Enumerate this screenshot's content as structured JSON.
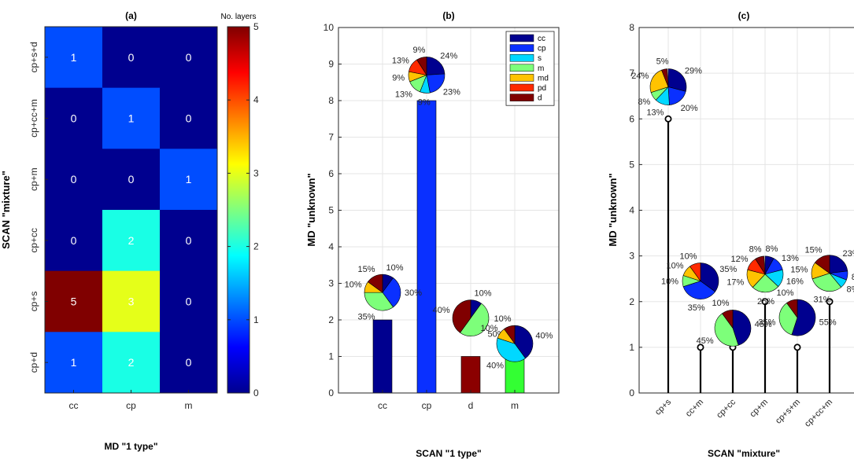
{
  "chart_data": [
    {
      "type": "heatmap",
      "title": "(a)",
      "xlabel": "MD \"1 type\"",
      "ylabel": "SCAN \"mixture\"",
      "x_categories": [
        "cc",
        "cp",
        "m"
      ],
      "y_categories": [
        "cp+s+d",
        "cp+cc+m",
        "cp+m",
        "cp+cc",
        "cp+s",
        "cp+d"
      ],
      "values": [
        [
          1,
          0,
          0
        ],
        [
          0,
          1,
          0
        ],
        [
          0,
          0,
          1
        ],
        [
          0,
          2,
          0
        ],
        [
          5,
          3,
          0
        ],
        [
          1,
          2,
          0
        ]
      ],
      "colorbar": {
        "label": "No. layers",
        "range": [
          0,
          5
        ],
        "ticks": [
          "0",
          "1",
          "2",
          "3",
          "4",
          "5"
        ]
      }
    },
    {
      "type": "bar",
      "title": "(b)",
      "xlabel": "SCAN \"1 type\"",
      "ylabel": "MD \"unknown\"",
      "ylim": [
        0,
        10
      ],
      "yticks": [
        "0",
        "1",
        "2",
        "3",
        "4",
        "5",
        "6",
        "7",
        "8",
        "9",
        "10"
      ],
      "grid": true,
      "legend_placement": "top-right",
      "legend": [
        {
          "label": "cc",
          "color": "#00008f"
        },
        {
          "label": "cp",
          "color": "#0a30ff"
        },
        {
          "label": "s",
          "color": "#00d8ff"
        },
        {
          "label": "m",
          "color": "#7dff7a"
        },
        {
          "label": "md",
          "color": "#ffc300"
        },
        {
          "label": "pd",
          "color": "#ff2a00"
        },
        {
          "label": "d",
          "color": "#800000"
        }
      ],
      "categories": [
        "cc",
        "cp",
        "d",
        "m"
      ],
      "values": [
        2,
        8,
        1,
        1
      ],
      "bar_colors": [
        "#00008f",
        "#0a30ff",
        "#8b0000",
        "#33ff33"
      ],
      "pies": [
        {
          "category": "cc",
          "y": 2.75,
          "slices": [
            {
              "class": "cc",
              "pct": 10
            },
            {
              "class": "cp",
              "pct": 30
            },
            {
              "class": "m",
              "pct": 35
            },
            {
              "class": "md",
              "pct": 10
            },
            {
              "class": "d",
              "pct": 15
            }
          ],
          "labels": [
            "10%",
            "30%",
            "35%",
            "10%",
            "15%"
          ]
        },
        {
          "category": "cp",
          "y": 8.7,
          "slices": [
            {
              "class": "cc",
              "pct": 24
            },
            {
              "class": "cp",
              "pct": 23
            },
            {
              "class": "s",
              "pct": 9
            },
            {
              "class": "m",
              "pct": 13
            },
            {
              "class": "md",
              "pct": 9
            },
            {
              "class": "pd",
              "pct": 13
            },
            {
              "class": "d",
              "pct": 9
            }
          ],
          "labels": [
            "24%",
            "23%",
            "9%",
            "13%",
            "9%",
            "13%",
            "9%"
          ]
        },
        {
          "category": "d",
          "y": 2.05,
          "slices": [
            {
              "class": "cc",
              "pct": 10
            },
            {
              "class": "m",
              "pct": 50
            },
            {
              "class": "d",
              "pct": 40
            }
          ],
          "labels": [
            "10%",
            "50%",
            "40%"
          ]
        },
        {
          "category": "m",
          "y": 1.35,
          "slices": [
            {
              "class": "cc",
              "pct": 40
            },
            {
              "class": "s",
              "pct": 40
            },
            {
              "class": "md",
              "pct": 10
            },
            {
              "class": "d",
              "pct": 10
            }
          ],
          "labels": [
            "40%",
            "40%",
            "10%",
            "10%"
          ]
        }
      ]
    },
    {
      "type": "scatter",
      "title": "(c)",
      "xlabel": "SCAN \"mixture\"",
      "ylabel": "MD \"unknown\"",
      "ylim": [
        0,
        8
      ],
      "yticks": [
        "0",
        "1",
        "2",
        "3",
        "4",
        "5",
        "6",
        "7",
        "8"
      ],
      "grid": true,
      "categories": [
        "cp+s",
        "cc+m",
        "cp+cc",
        "cp+m",
        "cp+s+m",
        "cp+cc+m"
      ],
      "values": [
        6,
        1,
        1,
        2,
        1,
        2
      ],
      "pies": [
        {
          "category": "cp+s",
          "y": 6.7,
          "slices": [
            {
              "class": "cc",
              "pct": 29
            },
            {
              "class": "cp",
              "pct": 20
            },
            {
              "class": "s",
              "pct": 13
            },
            {
              "class": "m",
              "pct": 8
            },
            {
              "class": "md",
              "pct": 24
            },
            {
              "class": "d",
              "pct": 5
            }
          ],
          "labels": [
            "29%",
            "20%",
            "13%",
            "8%",
            "24%",
            "5%"
          ]
        },
        {
          "category": "cc+m",
          "y": 2.45,
          "slices": [
            {
              "class": "cc",
              "pct": 35
            },
            {
              "class": "cp",
              "pct": 35
            },
            {
              "class": "m",
              "pct": 10
            },
            {
              "class": "md",
              "pct": 10
            },
            {
              "class": "pd",
              "pct": 10
            }
          ],
          "labels": [
            "35%",
            "35%",
            "10%",
            "10%",
            "10%"
          ]
        },
        {
          "category": "cp+cc",
          "y": 1.42,
          "slices": [
            {
              "class": "cc",
              "pct": 45
            },
            {
              "class": "m",
              "pct": 45
            },
            {
              "class": "d",
              "pct": 10
            }
          ],
          "labels": [
            "45%",
            "45%",
            "10%"
          ]
        },
        {
          "category": "cp+m",
          "y": 2.6,
          "slices": [
            {
              "class": "cc",
              "pct": 8
            },
            {
              "class": "cp",
              "pct": 13
            },
            {
              "class": "s",
              "pct": 16
            },
            {
              "class": "m",
              "pct": 25
            },
            {
              "class": "md",
              "pct": 17
            },
            {
              "class": "pd",
              "pct": 12
            },
            {
              "class": "d",
              "pct": 8
            }
          ],
          "labels": [
            "8%",
            "13%",
            "16%",
            "25%",
            "17%",
            "12%",
            "8%"
          ]
        },
        {
          "category": "cp+s+m",
          "y": 1.65,
          "slices": [
            {
              "class": "cc",
              "pct": 55
            },
            {
              "class": "m",
              "pct": 35
            },
            {
              "class": "d",
              "pct": 10
            }
          ],
          "labels": [
            "55%",
            "35%",
            "10%"
          ]
        },
        {
          "category": "cp+cc+m",
          "y": 2.62,
          "slices": [
            {
              "class": "cc",
              "pct": 23
            },
            {
              "class": "cp",
              "pct": 8
            },
            {
              "class": "s",
              "pct": 8
            },
            {
              "class": "m",
              "pct": 31
            },
            {
              "class": "md",
              "pct": 15
            },
            {
              "class": "d",
              "pct": 15
            }
          ],
          "labels": [
            "23%",
            "8%",
            "8%",
            "31%",
            "15%",
            "15%"
          ]
        }
      ]
    }
  ]
}
